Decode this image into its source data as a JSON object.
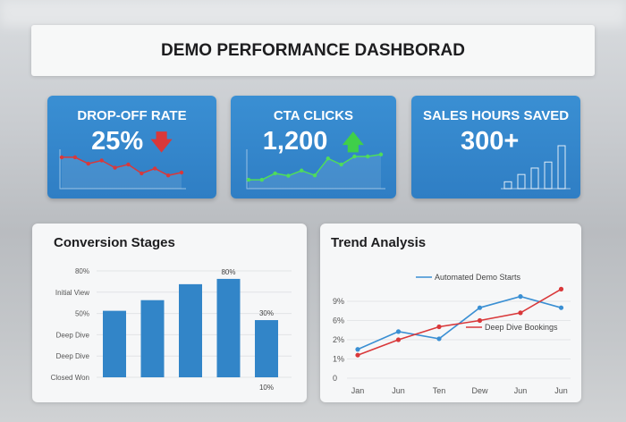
{
  "title": "DEMO PERFORMANCE DASHBORAD",
  "kpis": [
    {
      "label": "DROP-OFF RATE",
      "value": "25%",
      "trend_icon": "arrow-down-icon",
      "trend_color": "#d9383a",
      "spark_type": "line",
      "spark_color": "#d9383a",
      "spark": [
        0.78,
        0.78,
        0.62,
        0.7,
        0.52,
        0.6,
        0.38,
        0.5,
        0.33,
        0.4
      ]
    },
    {
      "label": "CTA CLICKS",
      "value": "1,200",
      "trend_icon": "arrow-up-icon",
      "trend_color": "#3fcf4a",
      "spark_type": "line",
      "spark_color": "#4fdc5a",
      "spark": [
        0.22,
        0.22,
        0.38,
        0.32,
        0.45,
        0.33,
        0.75,
        0.6,
        0.8,
        0.8,
        0.85
      ]
    },
    {
      "label": "SALES HOURS SAVED",
      "value": "300+",
      "spark_type": "bar",
      "spark_color": "#ffffff",
      "spark": [
        0.16,
        0.33,
        0.48,
        0.62,
        1.0
      ]
    }
  ],
  "chart_data": [
    {
      "type": "bar",
      "title": "Conversion Stages",
      "ylim": [
        0,
        80
      ],
      "ytick_labels": [
        "Closed Won",
        "Deep Dive",
        "Deep Dive",
        "50%",
        "Initial View",
        "80%"
      ],
      "values": [
        50,
        58,
        70,
        74,
        43
      ],
      "data_labels": [
        {
          "bar": 3,
          "text": "80%"
        },
        {
          "bar": 4,
          "text": "30%"
        },
        {
          "bar": 4,
          "text": "10%",
          "position": "below"
        }
      ],
      "color": "#3285c8",
      "grid": true
    },
    {
      "type": "line",
      "title": "Trend Analysis",
      "x": [
        "Jan",
        "Jun",
        "Ten",
        "Dew",
        "Jun",
        "Jun"
      ],
      "ytick_labels": [
        "0",
        "1%",
        "2%",
        "6%",
        "9%"
      ],
      "ytick_values": [
        0,
        1,
        2,
        6,
        9
      ],
      "series": [
        {
          "name": "Automated Demo Starts",
          "color": "#3a8fd3",
          "values": [
            1.5,
            3.7,
            2.2,
            8.0,
            9.75,
            8.0
          ]
        },
        {
          "name": "Deep Dive Bookings",
          "color": "#d9383a",
          "values": [
            1.2,
            2.0,
            4.7,
            6.0,
            7.2,
            10.9
          ]
        }
      ],
      "grid": true
    }
  ]
}
